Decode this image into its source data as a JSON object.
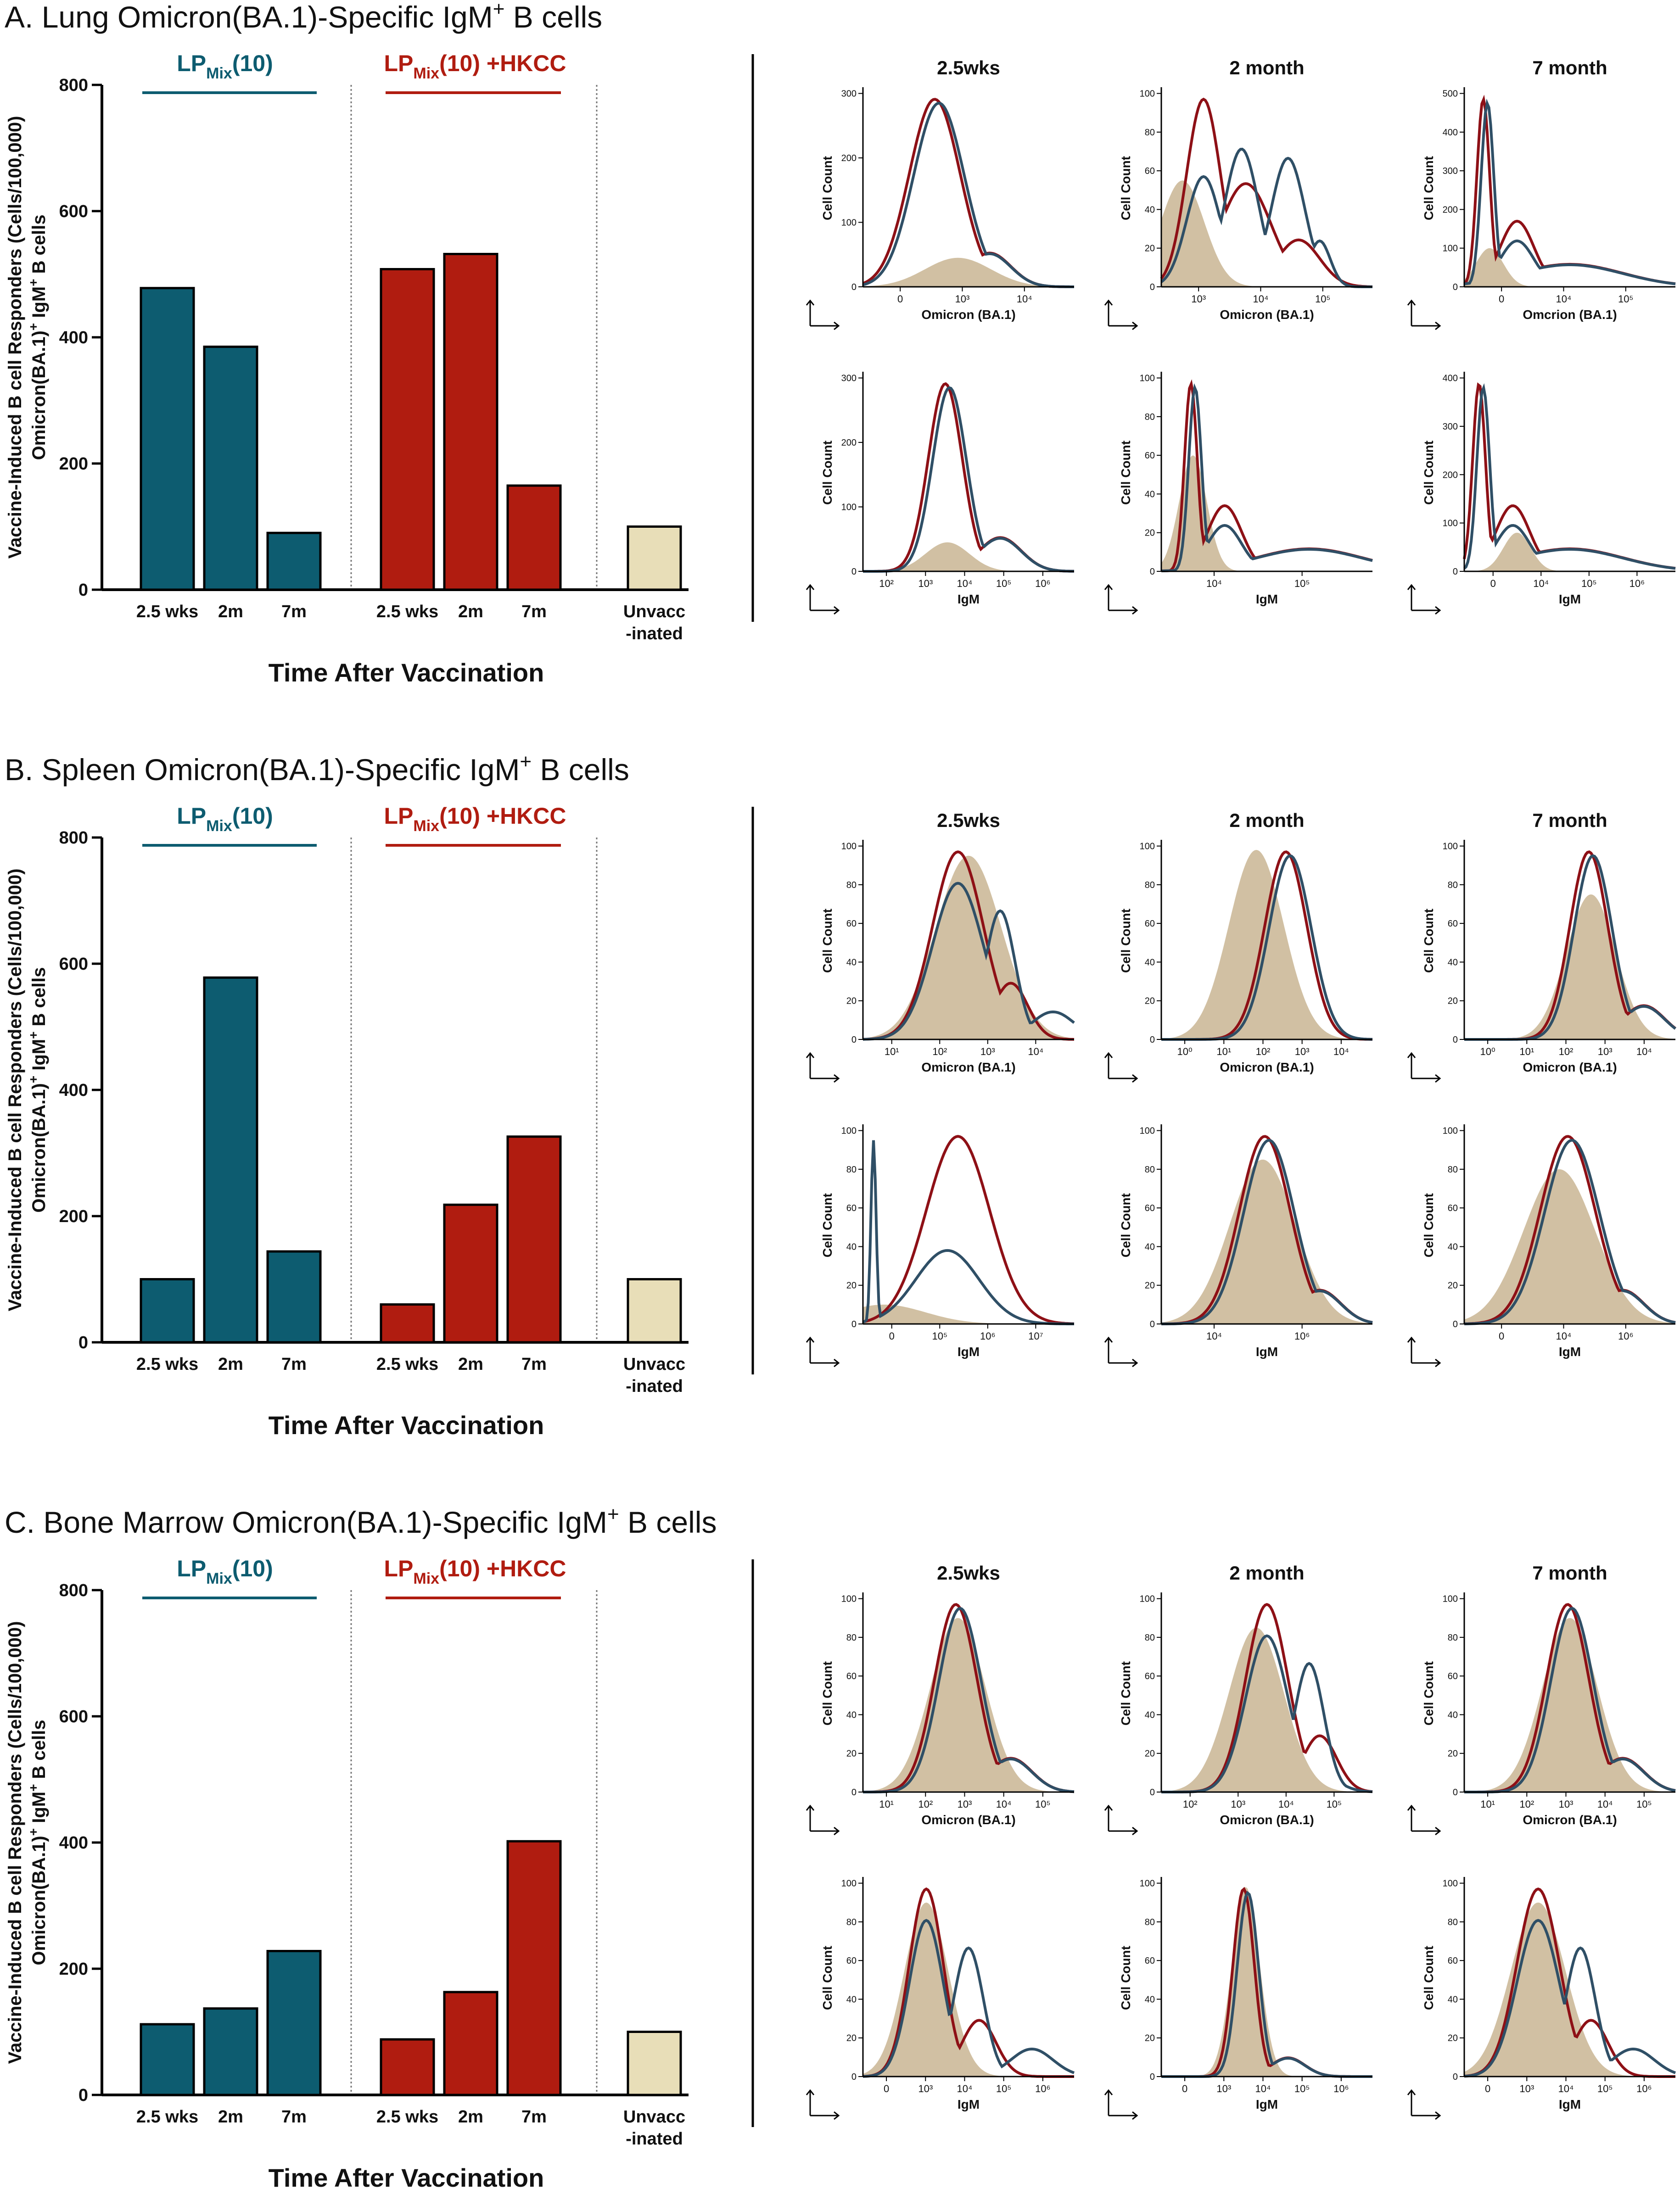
{
  "colors": {
    "teal": "#0d5c70",
    "red": "#b01c10",
    "beige": "#e8deb8",
    "curve_red": "#8e1016",
    "curve_blue": "#2f4f66",
    "fill_tan": "#c9b593",
    "fill_beige": "#ddd3a9"
  },
  "chart_data": [
    {
      "id": "A",
      "type": "bar",
      "title": "A. Lung Omicron(BA.1)-Specific IgM",
      "title_sup": "+",
      "title_suffix": " B cells",
      "ylabel_line1": "Vaccine-Induced B cell Responders (Cells/100,000)",
      "ylabel_line2": "Omicron(BA.1)",
      "ylabel_sup": "+",
      "ylabel_line2b": " IgM",
      "ylabel_sup2": "+",
      "ylabel_line2c": " B cells",
      "xlabel": "Time After Vaccination",
      "ylim": [
        0,
        800
      ],
      "yticks": [
        "0",
        "200",
        "400",
        "600",
        "800"
      ],
      "groups": [
        {
          "name": "LP",
          "sub": "Mix",
          "suffix": "(10)",
          "color": "#0d5c70"
        },
        {
          "name": "LP",
          "sub": "Mix",
          "suffix": "(10) +HKCC",
          "color": "#b01c10"
        }
      ],
      "categories": [
        "2.5 wks",
        "2m",
        "7m",
        "2.5 wks",
        "2m",
        "7m",
        "Unvacc",
        "-inated"
      ],
      "bars": [
        {
          "group": 0,
          "label": "2.5 wks",
          "value": 478
        },
        {
          "group": 0,
          "label": "2m",
          "value": 385
        },
        {
          "group": 0,
          "label": "7m",
          "value": 90
        },
        {
          "group": 1,
          "label": "2.5 wks",
          "value": 508
        },
        {
          "group": 1,
          "label": "2m",
          "value": 532
        },
        {
          "group": 1,
          "label": "7m",
          "value": 165
        },
        {
          "group": 2,
          "label": "Unvacc",
          "value": 100
        }
      ]
    },
    {
      "id": "B",
      "type": "bar",
      "title": "B. Spleen Omicron(BA.1)-Specific IgM",
      "title_sup": "+",
      "title_suffix": " B cells",
      "ylabel_line1": "Vaccine-Induced B cell Responders (Cells/100,000)",
      "ylabel_line2": "Omicron(BA.1)",
      "ylabel_sup": "+",
      "ylabel_line2b": " IgM",
      "ylabel_sup2": "+",
      "ylabel_line2c": " B cells",
      "xlabel": "Time After Vaccination",
      "ylim": [
        0,
        800
      ],
      "yticks": [
        "0",
        "200",
        "400",
        "600",
        "800"
      ],
      "groups": [
        {
          "name": "LP",
          "sub": "Mix",
          "suffix": "(10)",
          "color": "#0d5c70"
        },
        {
          "name": "LP",
          "sub": "Mix",
          "suffix": "(10) +HKCC",
          "color": "#b01c10"
        }
      ],
      "categories": [
        "2.5 wks",
        "2m",
        "7m",
        "2.5 wks",
        "2m",
        "7m",
        "Unvacc",
        "-inated"
      ],
      "bars": [
        {
          "group": 0,
          "label": "2.5 wks",
          "value": 100
        },
        {
          "group": 0,
          "label": "2m",
          "value": 578
        },
        {
          "group": 0,
          "label": "7m",
          "value": 144
        },
        {
          "group": 1,
          "label": "2.5 wks",
          "value": 60
        },
        {
          "group": 1,
          "label": "2m",
          "value": 218
        },
        {
          "group": 1,
          "label": "7m",
          "value": 326
        },
        {
          "group": 2,
          "label": "Unvacc",
          "value": 100
        }
      ]
    },
    {
      "id": "C",
      "type": "bar",
      "title": "C. Bone Marrow Omicron(BA.1)-Specific IgM",
      "title_sup": "+",
      "title_suffix": " B cells",
      "ylabel_line1": "Vaccine-Induced B cell Responders (Cells/100,000)",
      "ylabel_line2": "Omicron(BA.1)",
      "ylabel_sup": "+",
      "ylabel_line2b": " IgM",
      "ylabel_sup2": "+",
      "ylabel_line2c": " B cells",
      "xlabel": "Time After Vaccination",
      "ylim": [
        0,
        800
      ],
      "yticks": [
        "0",
        "200",
        "400",
        "600",
        "800"
      ],
      "groups": [
        {
          "name": "LP",
          "sub": "Mix",
          "suffix": "(10)",
          "color": "#0d5c70"
        },
        {
          "name": "LP",
          "sub": "Mix",
          "suffix": "(10) +HKCC",
          "color": "#b01c10"
        }
      ],
      "categories": [
        "2.5 wks",
        "2m",
        "7m",
        "2.5 wks",
        "2m",
        "7m",
        "Unvacc",
        "-inated"
      ],
      "bars": [
        {
          "group": 0,
          "label": "2.5 wks",
          "value": 112
        },
        {
          "group": 0,
          "label": "2m",
          "value": 137
        },
        {
          "group": 0,
          "label": "7m",
          "value": 228
        },
        {
          "group": 1,
          "label": "2.5 wks",
          "value": 88
        },
        {
          "group": 1,
          "label": "2m",
          "value": 163
        },
        {
          "group": 1,
          "label": "7m",
          "value": 402
        },
        {
          "group": 2,
          "label": "Unvacc",
          "value": 100
        }
      ]
    }
  ],
  "histograms": [
    {
      "panel": "A",
      "columns": [
        "2.5wks",
        "2 month",
        "7 month"
      ],
      "rows": [
        [
          {
            "xlabel": "Omicron (BA.1)",
            "ylabel": "Cell Count",
            "ymax": 300,
            "yticks": [
              "0",
              "100",
              "200",
              "300"
            ],
            "xticks": [
              "0",
              "10³",
              "10⁴"
            ],
            "shape": "single",
            "peak": 0.35,
            "width": 0.12,
            "tail": 0.45,
            "fill_peak": 0.45,
            "fill_h": 0.15
          },
          {
            "xlabel": "Omicron (BA.1)",
            "ylabel": "Cell Count",
            "ymax": 100,
            "yticks": [
              "0",
              "20",
              "40",
              "60",
              "80",
              "100"
            ],
            "xticks": [
              "10³",
              "10⁴",
              "10⁵"
            ],
            "shape": "multi",
            "peak": 0.2,
            "width": 0.08,
            "tail": 0.6,
            "fill_peak": 0.1,
            "fill_h": 0.55
          },
          {
            "xlabel": "Omcrion (BA.1)",
            "ylabel": "Cell Count",
            "ymax": 500,
            "yticks": [
              "0",
              "100",
              "200",
              "300",
              "400",
              "500"
            ],
            "xticks": [
              "0",
              "10⁴",
              "10⁵"
            ],
            "shape": "spike",
            "peak": 0.1,
            "width": 0.05,
            "tail": 0.3,
            "fill_peak": 0.12,
            "fill_h": 0.2
          }
        ],
        [
          {
            "xlabel": "IgM",
            "ylabel": "Cell Count",
            "ymax": 300,
            "yticks": [
              "0",
              "100",
              "200",
              "300"
            ],
            "xticks": [
              "10²",
              "10³",
              "10⁴",
              "10⁵",
              "10⁶"
            ],
            "shape": "single",
            "peak": 0.4,
            "width": 0.08,
            "tail": 0.3,
            "fill_peak": 0.4,
            "fill_h": 0.15
          },
          {
            "xlabel": "IgM",
            "ylabel": "Cell Count",
            "ymax": 100,
            "yticks": [
              "0",
              "20",
              "40",
              "60",
              "80",
              "100"
            ],
            "xticks": [
              "10⁴",
              "10⁵"
            ],
            "shape": "spike",
            "peak": 0.15,
            "width": 0.05,
            "tail": 0.5,
            "fill_peak": 0.15,
            "fill_h": 0.6
          },
          {
            "xlabel": "IgM",
            "ylabel": "Cell Count",
            "ymax": 400,
            "yticks": [
              "0",
              "100",
              "200",
              "300",
              "400"
            ],
            "xticks": [
              "0",
              "10⁴",
              "10⁵",
              "10⁶"
            ],
            "shape": "spike",
            "peak": 0.08,
            "width": 0.05,
            "tail": 0.3,
            "fill_peak": 0.25,
            "fill_h": 0.2
          }
        ]
      ]
    },
    {
      "panel": "B",
      "columns": [
        "2.5wks",
        "2 month",
        "7 month"
      ],
      "rows": [
        [
          {
            "xlabel": "Omicron (BA.1)",
            "ylabel": "Cell Count",
            "ymax": 100,
            "yticks": [
              "0",
              "20",
              "40",
              "60",
              "80",
              "100"
            ],
            "xticks": [
              "10¹",
              "10²",
              "10³",
              "10⁴"
            ],
            "shape": "bimodal",
            "peak": 0.45,
            "width": 0.12,
            "tail": 0.6,
            "fill_peak": 0.5,
            "fill_h": 0.95
          },
          {
            "xlabel": "Omicron (BA.1)",
            "ylabel": "Cell Count",
            "ymax": 100,
            "yticks": [
              "0",
              "20",
              "40",
              "60",
              "80",
              "100"
            ],
            "xticks": [
              "10⁰",
              "10¹",
              "10²",
              "10³",
              "10⁴"
            ],
            "shape": "shift",
            "peak": 0.6,
            "width": 0.1,
            "tail": 0.3,
            "fill_peak": 0.45,
            "fill_h": 0.98
          },
          {
            "xlabel": "Omicron (BA.1)",
            "ylabel": "Cell Count",
            "ymax": 100,
            "yticks": [
              "0",
              "20",
              "40",
              "60",
              "80",
              "100"
            ],
            "xticks": [
              "10⁰",
              "10¹",
              "10²",
              "10³",
              "10⁴"
            ],
            "shape": "single",
            "peak": 0.6,
            "width": 0.09,
            "tail": 0.2,
            "fill_peak": 0.6,
            "fill_h": 0.75
          }
        ],
        [
          {
            "xlabel": "IgM",
            "ylabel": "Cell Count",
            "ymax": 100,
            "yticks": [
              "0",
              "20",
              "40",
              "60",
              "80",
              "100"
            ],
            "xticks": [
              "0",
              "10⁵",
              "10⁶",
              "10⁷"
            ],
            "shape": "wide",
            "peak": 0.45,
            "width": 0.15,
            "tail": 0.3,
            "fill_peak": 0.1,
            "fill_h": 0.1
          },
          {
            "xlabel": "IgM",
            "ylabel": "Cell Count",
            "ymax": 100,
            "yticks": [
              "0",
              "20",
              "40",
              "60",
              "80",
              "100"
            ],
            "xticks": [
              "10⁴",
              "10⁶"
            ],
            "shape": "single",
            "peak": 0.5,
            "width": 0.12,
            "tail": 0.3,
            "fill_peak": 0.48,
            "fill_h": 0.85
          },
          {
            "xlabel": "IgM",
            "ylabel": "Cell Count",
            "ymax": 100,
            "yticks": [
              "0",
              "20",
              "40",
              "60",
              "80",
              "100"
            ],
            "xticks": [
              "0",
              "10⁴",
              "10⁶"
            ],
            "shape": "single",
            "peak": 0.5,
            "width": 0.13,
            "tail": 0.3,
            "fill_peak": 0.45,
            "fill_h": 0.8
          }
        ]
      ]
    },
    {
      "panel": "C",
      "columns": [
        "2.5wks",
        "2 month",
        "7 month"
      ],
      "rows": [
        [
          {
            "xlabel": "Omicron (BA.1)",
            "ylabel": "Cell Count",
            "ymax": 100,
            "yticks": [
              "0",
              "20",
              "40",
              "60",
              "80",
              "100"
            ],
            "xticks": [
              "10¹",
              "10²",
              "10³",
              "10⁴",
              "10⁵"
            ],
            "shape": "single",
            "peak": 0.45,
            "width": 0.1,
            "tail": 0.3,
            "fill_peak": 0.45,
            "fill_h": 0.9
          },
          {
            "xlabel": "Omicron (BA.1)",
            "ylabel": "Cell Count",
            "ymax": 100,
            "yticks": [
              "0",
              "20",
              "40",
              "60",
              "80",
              "100"
            ],
            "xticks": [
              "10²",
              "10³",
              "10⁴",
              "10⁵"
            ],
            "shape": "bimodal",
            "peak": 0.5,
            "width": 0.1,
            "tail": 0.4,
            "fill_peak": 0.45,
            "fill_h": 0.85
          },
          {
            "xlabel": "Omicron (BA.1)",
            "ylabel": "Cell Count",
            "ymax": 100,
            "yticks": [
              "0",
              "20",
              "40",
              "60",
              "80",
              "100"
            ],
            "xticks": [
              "10¹",
              "10²",
              "10³",
              "10⁴",
              "10⁵"
            ],
            "shape": "single",
            "peak": 0.5,
            "width": 0.1,
            "tail": 0.3,
            "fill_peak": 0.5,
            "fill_h": 0.9
          }
        ],
        [
          {
            "xlabel": "IgM",
            "ylabel": "Cell Count",
            "ymax": 100,
            "yticks": [
              "0",
              "20",
              "40",
              "60",
              "80",
              "100"
            ],
            "xticks": [
              "0",
              "10³",
              "10⁴",
              "10⁵",
              "10⁶"
            ],
            "shape": "bimodal",
            "peak": 0.3,
            "width": 0.08,
            "tail": 0.5,
            "fill_peak": 0.3,
            "fill_h": 0.9
          },
          {
            "xlabel": "IgM",
            "ylabel": "Cell Count",
            "ymax": 100,
            "yticks": [
              "0",
              "20",
              "40",
              "60",
              "80",
              "100"
            ],
            "xticks": [
              "0",
              "10³",
              "10⁴",
              "10⁵",
              "10⁶"
            ],
            "shape": "narrow",
            "peak": 0.4,
            "width": 0.05,
            "tail": 0.3,
            "fill_peak": 0.4,
            "fill_h": 0.98
          },
          {
            "xlabel": "IgM",
            "ylabel": "Cell Count",
            "ymax": 100,
            "yticks": [
              "0",
              "20",
              "40",
              "60",
              "80",
              "100"
            ],
            "xticks": [
              "0",
              "10³",
              "10⁴",
              "10⁵",
              "10⁶"
            ],
            "shape": "bimodal",
            "peak": 0.35,
            "width": 0.1,
            "tail": 0.5,
            "fill_peak": 0.35,
            "fill_h": 0.9
          }
        ]
      ]
    }
  ]
}
